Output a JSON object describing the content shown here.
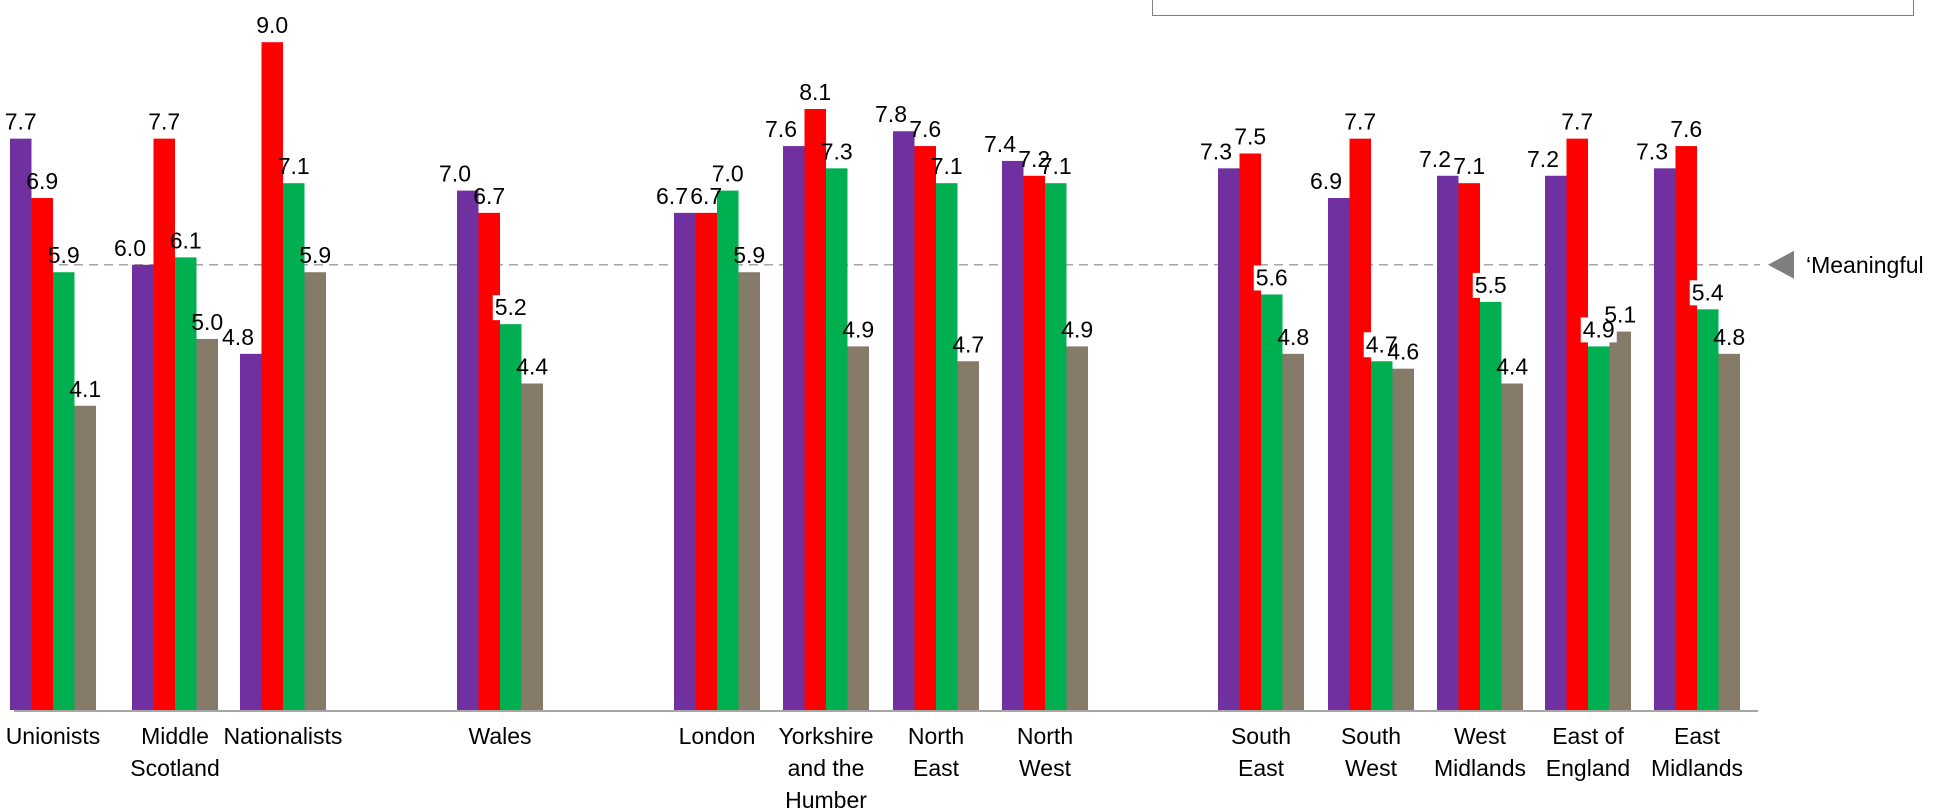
{
  "chart_data": {
    "type": "bar",
    "categories": [
      [
        "Unionists"
      ],
      [
        "Middle",
        "Scotland"
      ],
      [
        "Nationalists"
      ],
      [
        "Wales"
      ],
      [
        "London"
      ],
      [
        "Yorkshire",
        "and the",
        "Humber"
      ],
      [
        "North",
        "East"
      ],
      [
        "North",
        "West"
      ],
      [
        "South",
        "East"
      ],
      [
        "South",
        "West"
      ],
      [
        "West",
        "Midlands"
      ],
      [
        "East of",
        "England"
      ],
      [
        "East",
        "Midlands"
      ]
    ],
    "series": [
      {
        "color": "#7030a0",
        "values": [
          7.7,
          6.0,
          4.8,
          7.0,
          6.7,
          7.6,
          7.8,
          7.4,
          7.3,
          6.9,
          7.2,
          7.2,
          7.3
        ]
      },
      {
        "color": "#ff0000",
        "values": [
          6.9,
          7.7,
          9.0,
          6.7,
          6.7,
          8.1,
          7.6,
          7.2,
          7.5,
          7.7,
          7.1,
          7.7,
          7.6
        ]
      },
      {
        "color": "#00b050",
        "values": [
          5.9,
          6.1,
          7.1,
          5.2,
          7.0,
          7.3,
          7.1,
          7.1,
          5.6,
          4.7,
          5.5,
          4.9,
          5.4
        ]
      },
      {
        "color": "#857b68",
        "values": [
          4.1,
          5.0,
          5.9,
          4.4,
          5.9,
          4.9,
          4.7,
          4.9,
          4.8,
          4.6,
          4.4,
          5.1,
          4.8
        ]
      }
    ],
    "reference_line": {
      "value": 6.0,
      "label": "‘Meaningful"
    },
    "ylim": [
      0,
      9.5
    ],
    "grid": false
  }
}
